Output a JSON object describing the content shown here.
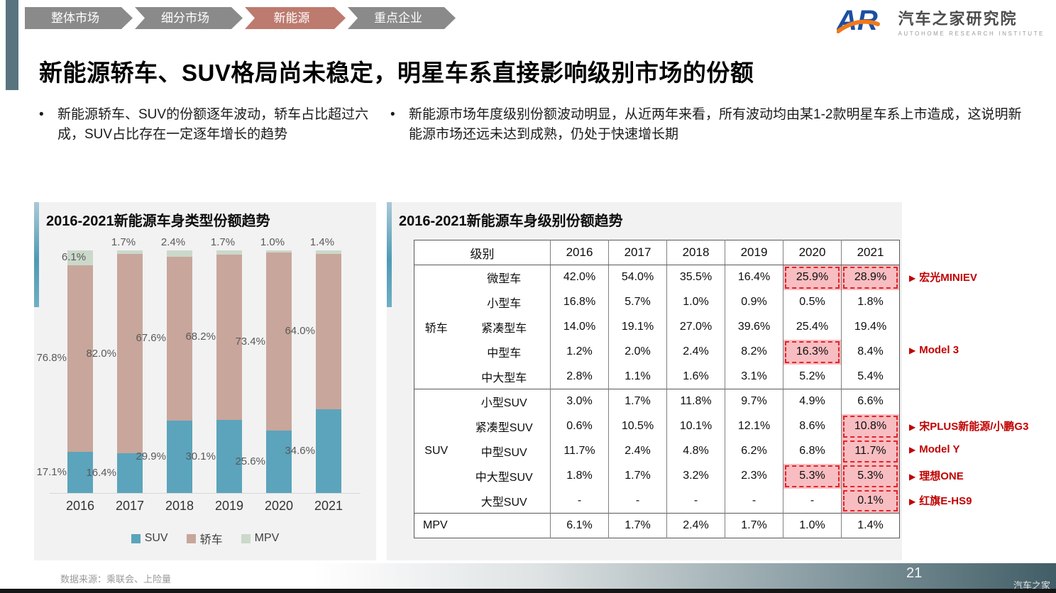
{
  "bullet_glyph": "•",
  "breadcrumb": {
    "items": [
      {
        "label": "整体市场",
        "active": false
      },
      {
        "label": "细分市场",
        "active": false
      },
      {
        "label": "新能源",
        "active": true
      },
      {
        "label": "重点企业",
        "active": false
      }
    ]
  },
  "logo": {
    "mark": "AR",
    "cn": "汽车之家研究院",
    "en": "AUTOHOME RESEARCH INSTITUTE"
  },
  "title": "新能源轿车、SUV格局尚未稳定，明星车系直接影响级别市场的份额",
  "bullets": [
    "新能源轿车、SUV的份额逐年波动，轿车占比超过六成，SUV占比存在一定逐年增长的趋势",
    "新能源市场年度级别份额波动明显，从近两年来看，所有波动均由某1-2款明星车系上市造成，这说明新能源市场还远未达到成熟，仍处于快速增长期"
  ],
  "colors": {
    "suv": "#5ba4bc",
    "sedan": "#c8a69b",
    "mpv": "#cbd8ca",
    "highlight_bg": "#f8bdc1",
    "highlight_border": "#e0252a",
    "annotation_red": "#c00000"
  },
  "chart_data": [
    {
      "type": "bar",
      "subtype": "stacked",
      "title": "2016-2021新能源车身类型份额趋势",
      "categories": [
        "2016",
        "2017",
        "2018",
        "2019",
        "2020",
        "2021"
      ],
      "series": [
        {
          "name": "SUV",
          "color": "#5ba4bc",
          "values": [
            17.1,
            16.4,
            29.9,
            30.1,
            25.6,
            34.6
          ]
        },
        {
          "name": "轿车",
          "color": "#c8a69b",
          "values": [
            76.8,
            82.0,
            67.6,
            68.2,
            73.4,
            64.0
          ]
        },
        {
          "name": "MPV",
          "color": "#cbd8ca",
          "values": [
            6.1,
            1.7,
            2.4,
            1.7,
            1.0,
            1.4
          ]
        }
      ],
      "value_suffix": "%",
      "ylim": [
        0,
        100
      ],
      "grid": false,
      "legend_position": "bottom"
    },
    {
      "type": "table",
      "title": "2016-2021新能源车身级别份额趋势",
      "columns": [
        "级别",
        "2016",
        "2017",
        "2018",
        "2019",
        "2020",
        "2021"
      ],
      "groups": [
        {
          "name": "轿车",
          "rows": [
            {
              "label": "微型车",
              "values": [
                "42.0%",
                "54.0%",
                "35.5%",
                "16.4%",
                "25.9%",
                "28.9%"
              ],
              "highlight": [
                4,
                5
              ],
              "annotation": "宏光MINIEV"
            },
            {
              "label": "小型车",
              "values": [
                "16.8%",
                "5.7%",
                "1.0%",
                "0.9%",
                "0.5%",
                "1.8%"
              ],
              "highlight": []
            },
            {
              "label": "紧凑型车",
              "values": [
                "14.0%",
                "19.1%",
                "27.0%",
                "39.6%",
                "25.4%",
                "19.4%"
              ],
              "highlight": []
            },
            {
              "label": "中型车",
              "values": [
                "1.2%",
                "2.0%",
                "2.4%",
                "8.2%",
                "16.3%",
                "8.4%"
              ],
              "highlight": [
                4
              ],
              "annotation": "Model 3"
            },
            {
              "label": "中大型车",
              "values": [
                "2.8%",
                "1.1%",
                "1.6%",
                "3.1%",
                "5.2%",
                "5.4%"
              ],
              "highlight": []
            }
          ]
        },
        {
          "name": "SUV",
          "rows": [
            {
              "label": "小型SUV",
              "values": [
                "3.0%",
                "1.7%",
                "11.8%",
                "9.7%",
                "4.9%",
                "6.6%"
              ],
              "highlight": []
            },
            {
              "label": "紧凑型SUV",
              "values": [
                "0.6%",
                "10.5%",
                "10.1%",
                "12.1%",
                "8.6%",
                "10.8%"
              ],
              "highlight": [
                5
              ],
              "annotation": "宋PLUS新能源/小鹏G3"
            },
            {
              "label": "中型SUV",
              "values": [
                "11.7%",
                "2.4%",
                "4.8%",
                "6.2%",
                "6.8%",
                "11.7%"
              ],
              "highlight": [
                5
              ],
              "annotation": "Model Y"
            },
            {
              "label": "中大型SUV",
              "values": [
                "1.8%",
                "1.7%",
                "3.2%",
                "2.3%",
                "5.3%",
                "5.3%"
              ],
              "highlight": [
                4,
                5
              ],
              "annotation": "理想ONE"
            },
            {
              "label": "大型SUV",
              "values": [
                "-",
                "-",
                "-",
                "-",
                "-",
                "0.1%"
              ],
              "highlight": [
                5
              ],
              "annotation": "红旗E-HS9"
            }
          ]
        },
        {
          "name": null,
          "rows": [
            {
              "label": "MPV",
              "values": [
                "6.1%",
                "1.7%",
                "2.4%",
                "1.7%",
                "1.0%",
                "1.4%"
              ],
              "highlight": []
            }
          ]
        }
      ],
      "annotation_marker": "▶"
    }
  ],
  "footer": {
    "source": "数据来源：乘联会、上险量",
    "page": "21",
    "watermark": "汽车之家"
  }
}
